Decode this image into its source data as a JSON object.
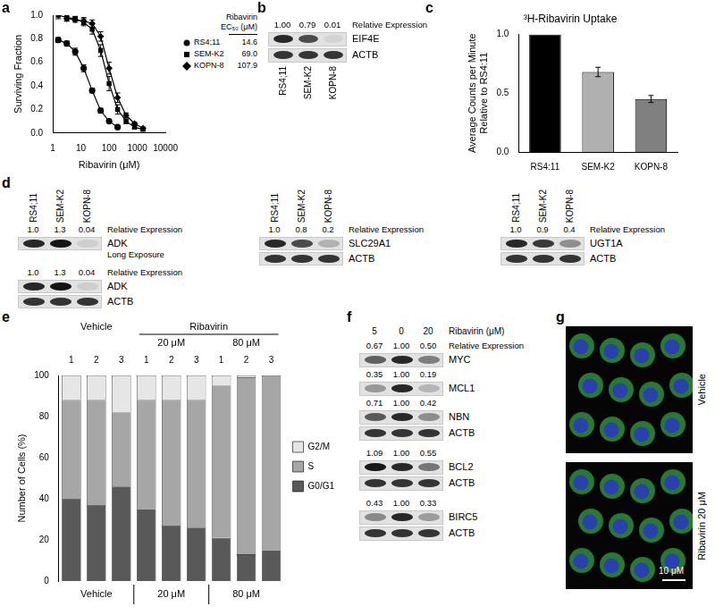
{
  "chart_data": [
    {
      "panel": "a",
      "type": "line",
      "x_label": "Ribavirin (μM)",
      "y_label": "Surviving Fraction",
      "log": "x",
      "grid": false,
      "legend": "right",
      "legend_title": [
        "Ribavirin",
        "EC₅₀ (μM)"
      ],
      "x": [
        1.56,
        3.13,
        6.25,
        12.5,
        25,
        50,
        100,
        200,
        400,
        800,
        1600
      ],
      "xlim": [
        1,
        10000
      ],
      "xticks": [
        1,
        10,
        100,
        1000,
        10000
      ],
      "ylim": [
        0,
        1
      ],
      "yticks": [
        {
          "value": 0,
          "label": "0.0"
        },
        {
          "value": 0.2,
          "label": "0.2"
        },
        {
          "value": 0.4,
          "label": "0.4"
        },
        {
          "value": 0.6,
          "label": "0.6"
        },
        {
          "value": 0.8,
          "label": "0.8"
        },
        {
          "value": 1,
          "label": "1.0"
        }
      ],
      "series": [
        {
          "name": "RS4;11",
          "color": "#000000",
          "marker": "circle",
          "line_style": "solid",
          "ec50": "14.6",
          "values": [
            0.79,
            0.76,
            0.69,
            0.55,
            0.36,
            0.19,
            0.1,
            0.05,
            null,
            null,
            null
          ],
          "errors": [
            0.02,
            0.02,
            0.03,
            0.03,
            0.02,
            0.02,
            0.01,
            0.01,
            null,
            null,
            null
          ]
        },
        {
          "name": "SEM-K2",
          "color": "#000000",
          "marker": "square",
          "line_style": "solid",
          "ec50": "69.0",
          "values": [
            1.0,
            0.98,
            0.97,
            0.94,
            0.88,
            0.7,
            0.42,
            0.2,
            0.1,
            0.05,
            0.03
          ],
          "errors": [
            0.03,
            0.03,
            0.02,
            0.03,
            0.04,
            0.05,
            0.06,
            0.04,
            0.02,
            0.01,
            0.01
          ]
        },
        {
          "name": "KOPN-8",
          "color": "#000000",
          "marker": "diamond",
          "line_style": "solid",
          "ec50": "107.9",
          "values": [
            null,
            0.97,
            0.96,
            0.95,
            0.93,
            0.82,
            0.55,
            0.3,
            0.15,
            0.08,
            0.04
          ],
          "errors": [
            null,
            0.02,
            0.02,
            0.03,
            0.03,
            0.04,
            0.05,
            0.04,
            0.02,
            0.01,
            0.01
          ]
        }
      ]
    },
    {
      "panel": "c",
      "type": "bar",
      "title": "³H-Ribavirin Uptake",
      "y_label": [
        "Average Counts per Minute",
        "Relative to RS4:11"
      ],
      "grid": false,
      "categories": [
        "RS4:11",
        "SEM-K2",
        "KOPN-8"
      ],
      "values": [
        1.0,
        0.68,
        0.45
      ],
      "errors": [
        0,
        0.04,
        0.03
      ],
      "colors": [
        "#000000",
        "#b0b0b0",
        "#808080"
      ],
      "ylim": [
        0,
        1
      ],
      "yticks": [
        {
          "value": 0,
          "label": "0.0"
        },
        {
          "value": 0.5,
          "label": "0.5"
        },
        {
          "value": 1,
          "label": "1.0"
        }
      ]
    },
    {
      "panel": "e",
      "type": "bar",
      "stacked": true,
      "grid": false,
      "legend": "right",
      "y_label": "Number of Cells (%)",
      "categories": [
        "1",
        "2",
        "3",
        "1",
        "2",
        "3",
        "1",
        "2",
        "3"
      ],
      "conditions": [
        {
          "label": "Vehicle"
        },
        {
          "label": "20 μM",
          "group": "Ribavirin"
        },
        {
          "label": "80 μM",
          "group": "Ribavirin"
        }
      ],
      "ylim": [
        0,
        100
      ],
      "yticks": [
        0,
        20,
        40,
        60,
        80,
        100
      ],
      "series": [
        {
          "name": "G0/G1",
          "color": "#595959",
          "values": [
            40,
            37,
            46,
            35,
            27,
            26,
            21,
            13,
            15
          ]
        },
        {
          "name": "S",
          "color": "#a6a6a6",
          "values": [
            48,
            51,
            36,
            53,
            61,
            62,
            74,
            86,
            85
          ]
        },
        {
          "name": "G2/M",
          "color": "#e6e6e6",
          "values": [
            12,
            12,
            18,
            12,
            12,
            12,
            5,
            1,
            0
          ]
        }
      ]
    }
  ],
  "blots": [
    {
      "panel": "b",
      "lanes": [
        "RS4;11",
        "SEM-K2",
        "KOPN-8"
      ],
      "lane_position": "bottom",
      "blocks": [
        [
          {
            "label": "EIF4E",
            "values_header": "Relative Expression",
            "values": [
              "1.00",
              "0.79",
              "0.01"
            ]
          },
          {
            "label": "ACTB"
          }
        ]
      ]
    },
    {
      "panel": "d",
      "lanes": [
        "RS4;11",
        "SEM-K2",
        "KOPN-8"
      ],
      "lane_position": "top",
      "blocks": [
        [
          {
            "label": "ADK",
            "sublabel": "Long Exposure",
            "values_header": "Relative Expression",
            "values": [
              "1.0",
              "1.3",
              "0.04"
            ]
          }
        ],
        [
          {
            "label": "ADK",
            "values_header": "Relative Expression",
            "values": [
              "1.0",
              "1.3",
              "0.04"
            ]
          },
          {
            "label": "ACTB"
          }
        ]
      ]
    },
    {
      "panel": "d",
      "lanes": [
        "RS4;11",
        "SEM-K2",
        "KOPN-8"
      ],
      "lane_position": "top",
      "blocks": [
        [
          {
            "label": "SLC29A1",
            "values_header": "Relative Expression",
            "values": [
              "1.0",
              "0.8",
              "0.2"
            ]
          },
          {
            "label": "ACTB"
          }
        ]
      ]
    },
    {
      "panel": "d",
      "lanes": [
        "RS4;11",
        "SEM-K2",
        "KOPN-8"
      ],
      "lane_position": "top",
      "blocks": [
        [
          {
            "label": "UGT1A",
            "values_header": "Relative Expression",
            "values": [
              "1.0",
              "0.9",
              "0.4"
            ]
          },
          {
            "label": "ACTB"
          }
        ]
      ]
    },
    {
      "panel": "f",
      "lanes": [
        "5",
        "0",
        "20"
      ],
      "lane_header": "Ribavirin (μM)",
      "lane_position": "top",
      "blocks": [
        [
          {
            "label": "MYC",
            "values_header": "Relative Expression",
            "values": [
              "0.67",
              "1.00",
              "0.50"
            ]
          },
          {
            "label": "MCL1",
            "values": [
              "0.35",
              "1.00",
              "0.19"
            ]
          },
          {
            "label": "NBN",
            "values": [
              "0.71",
              "1.00",
              "0.42"
            ]
          },
          {
            "label": "ACTB"
          }
        ],
        [
          {
            "label": "BCL2",
            "values": [
              "1.09",
              "1.00",
              "0.55"
            ]
          },
          {
            "label": "ACTB"
          }
        ],
        [
          {
            "label": "BIRC5",
            "values": [
              "0.43",
              "1.00",
              "0.33"
            ]
          },
          {
            "label": "ACTB"
          }
        ]
      ]
    }
  ],
  "micrographs": {
    "panel": "g",
    "images": [
      "Vehicle",
      "Ribavirin 20 μM"
    ],
    "scale_bar": "10 μM"
  }
}
